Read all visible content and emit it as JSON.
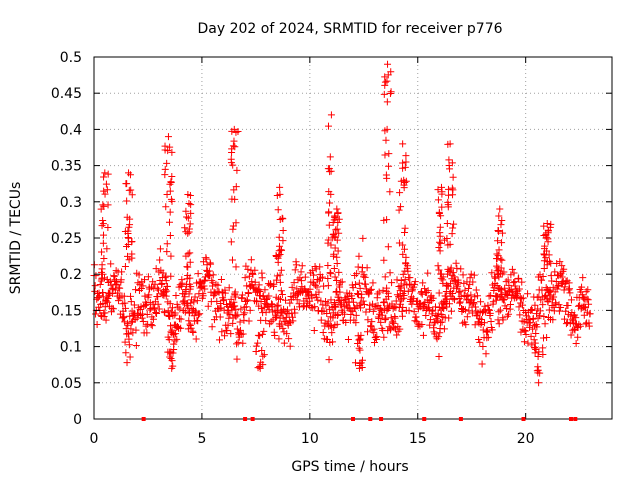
{
  "chart_data": {
    "type": "scatter",
    "title": "Day 202 of 2024, SRMTID for receiver p776",
    "xlabel": "GPS time / hours",
    "ylabel": "SRMTID / TECUs",
    "xlim": [
      0,
      24
    ],
    "ylim": [
      0,
      0.5
    ],
    "xticks": [
      0,
      5,
      10,
      15,
      20
    ],
    "xtick_labels": [
      "0",
      "5",
      "10",
      "15",
      "20"
    ],
    "yticks": [
      0,
      0.05,
      0.1,
      0.15,
      0.2,
      0.25,
      0.3,
      0.35,
      0.4,
      0.45,
      0.5
    ],
    "ytick_labels": [
      "0",
      "0.05",
      "0.1",
      "0.15",
      "0.2",
      "0.25",
      "0.3",
      "0.35",
      "0.4",
      "0.45",
      "0.5"
    ],
    "grid": true,
    "marker": "+",
    "series_color": "#ff0000",
    "time_range_hours": [
      0,
      23
    ],
    "baseline_mean": 0.16,
    "bursts": [
      {
        "t": 0.5,
        "peak": 0.34
      },
      {
        "t": 1.6,
        "peak": 0.34
      },
      {
        "t": 3.45,
        "peak": 0.39
      },
      {
        "t": 4.35,
        "peak": 0.31
      },
      {
        "t": 6.5,
        "peak": 0.4
      },
      {
        "t": 8.6,
        "peak": 0.32
      },
      {
        "t": 11.0,
        "peak": 0.42
      },
      {
        "t": 11.25,
        "peak": 0.29
      },
      {
        "t": 13.6,
        "peak": 0.49
      },
      {
        "t": 14.3,
        "peak": 0.38
      },
      {
        "t": 16.1,
        "peak": 0.32
      },
      {
        "t": 16.5,
        "peak": 0.38
      },
      {
        "t": 18.8,
        "peak": 0.29
      },
      {
        "t": 21.0,
        "peak": 0.27
      }
    ],
    "lows": [
      {
        "t": 3.6,
        "value": 0.07
      },
      {
        "t": 7.7,
        "value": 0.07
      },
      {
        "t": 12.3,
        "value": 0.07
      },
      {
        "t": 20.6,
        "value": 0.05
      }
    ],
    "zero_markers": [
      2.3,
      7.0,
      7.35,
      12.0,
      12.8,
      13.3,
      15.3,
      17.0,
      19.9,
      22.1,
      22.3
    ]
  }
}
